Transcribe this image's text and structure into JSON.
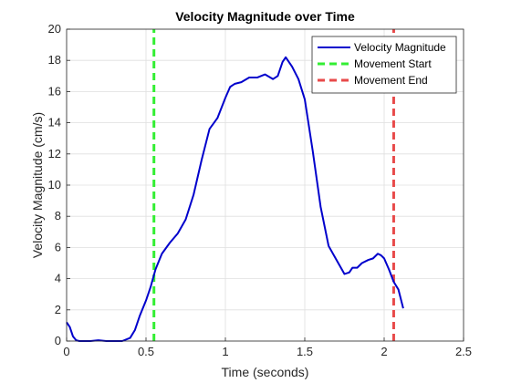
{
  "chart_data": {
    "type": "line",
    "title": "Velocity Magnitude over Time",
    "xlabel": "Time (seconds)",
    "ylabel": "Velocity Magnitude (cm/s)",
    "xlim": [
      0,
      2.5
    ],
    "ylim": [
      0,
      20
    ],
    "xticks": [
      0,
      0.5,
      1,
      1.5,
      2,
      2.5
    ],
    "xtick_labels": [
      "0",
      "0.5",
      "1",
      "1.5",
      "2",
      "2.5"
    ],
    "yticks": [
      0,
      2,
      4,
      6,
      8,
      10,
      12,
      14,
      16,
      18,
      20
    ],
    "ytick_labels": [
      "0",
      "2",
      "4",
      "6",
      "8",
      "10",
      "12",
      "14",
      "16",
      "18",
      "20"
    ],
    "grid": true,
    "legend_position": "top-right",
    "series": [
      {
        "name": "Velocity Magnitude",
        "color": "#0000cc",
        "style": "solid",
        "x": [
          0,
          0.02,
          0.04,
          0.06,
          0.08,
          0.1,
          0.15,
          0.2,
          0.25,
          0.3,
          0.35,
          0.4,
          0.43,
          0.46,
          0.5,
          0.53,
          0.56,
          0.6,
          0.65,
          0.7,
          0.75,
          0.8,
          0.85,
          0.9,
          0.95,
          1.0,
          1.03,
          1.06,
          1.1,
          1.15,
          1.2,
          1.25,
          1.3,
          1.33,
          1.36,
          1.38,
          1.42,
          1.46,
          1.5,
          1.55,
          1.6,
          1.65,
          1.7,
          1.75,
          1.78,
          1.8,
          1.83,
          1.86,
          1.9,
          1.93,
          1.96,
          1.98,
          2.0,
          2.03,
          2.06,
          2.09,
          2.12
        ],
        "y": [
          1.2,
          0.9,
          0.3,
          0.05,
          0.0,
          0.0,
          0.0,
          0.05,
          0.0,
          0.0,
          0.0,
          0.2,
          0.7,
          1.6,
          2.6,
          3.5,
          4.6,
          5.6,
          6.3,
          6.9,
          7.8,
          9.4,
          11.6,
          13.6,
          14.3,
          15.6,
          16.3,
          16.5,
          16.6,
          16.9,
          16.9,
          17.1,
          16.8,
          17.0,
          17.9,
          18.2,
          17.6,
          16.8,
          15.5,
          12.2,
          8.6,
          6.1,
          5.2,
          4.3,
          4.4,
          4.7,
          4.7,
          5.0,
          5.2,
          5.3,
          5.6,
          5.5,
          5.3,
          4.6,
          3.8,
          3.3,
          2.1
        ]
      },
      {
        "name": "Movement Start",
        "color": "#33ee33",
        "style": "dashed",
        "x": [
          0.55,
          0.55
        ],
        "y": [
          0,
          20
        ]
      },
      {
        "name": "Movement End",
        "color": "#e84a4a",
        "style": "dashed",
        "x": [
          2.06,
          2.06
        ],
        "y": [
          0,
          20
        ]
      }
    ]
  }
}
